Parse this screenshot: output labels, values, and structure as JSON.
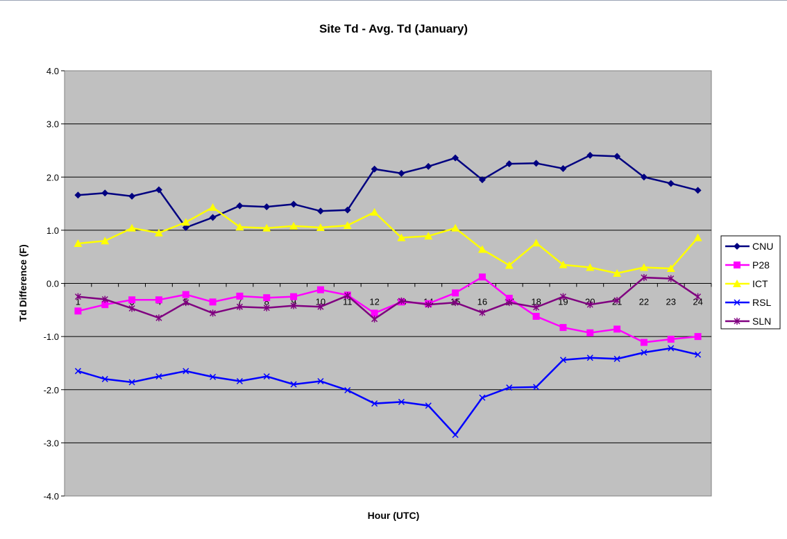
{
  "chart_data": {
    "type": "line",
    "title": "Site Td - Avg. Td (January)",
    "xlabel": "Hour (UTC)",
    "ylabel": "Td Difference (F)",
    "ylim": [
      -4.0,
      4.0
    ],
    "yticks": [
      "4.0",
      "3.0",
      "2.0",
      "1.0",
      "0.0",
      "-1.0",
      "-2.0",
      "-3.0",
      "-4.0"
    ],
    "categories": [
      "1",
      "2",
      "3",
      "4",
      "5",
      "6",
      "7",
      "8",
      "9",
      "10",
      "11",
      "12",
      "13",
      "14",
      "15",
      "16",
      "17",
      "18",
      "19",
      "20",
      "21",
      "22",
      "23",
      "24"
    ],
    "grid": true,
    "legend_position": "right",
    "plot_background": "#c0c0c0",
    "series": [
      {
        "name": "CNU",
        "color": "#000080",
        "marker": "diamond",
        "values": [
          1.66,
          1.7,
          1.64,
          1.76,
          1.05,
          1.24,
          1.46,
          1.44,
          1.49,
          1.36,
          1.38,
          2.15,
          2.07,
          2.2,
          2.36,
          1.95,
          2.25,
          2.26,
          2.16,
          2.41,
          2.39,
          2.0,
          1.88,
          1.75
        ]
      },
      {
        "name": "P28",
        "color": "#ff00ff",
        "marker": "square",
        "values": [
          -0.52,
          -0.4,
          -0.31,
          -0.31,
          -0.21,
          -0.35,
          -0.24,
          -0.27,
          -0.25,
          -0.12,
          -0.22,
          -0.56,
          -0.35,
          -0.38,
          -0.18,
          0.12,
          -0.28,
          -0.62,
          -0.83,
          -0.93,
          -0.86,
          -1.11,
          -1.05,
          -1.0
        ]
      },
      {
        "name": "ICT",
        "color": "#ffff00",
        "marker": "triangle",
        "values": [
          0.75,
          0.8,
          1.04,
          0.95,
          1.15,
          1.43,
          1.06,
          1.04,
          1.08,
          1.05,
          1.09,
          1.34,
          0.86,
          0.89,
          1.04,
          0.64,
          0.34,
          0.76,
          0.35,
          0.3,
          0.19,
          0.3,
          0.28,
          0.86
        ]
      },
      {
        "name": "RSL",
        "color": "#0000ff",
        "marker": "x",
        "values": [
          -1.65,
          -1.8,
          -1.86,
          -1.75,
          -1.65,
          -1.76,
          -1.84,
          -1.75,
          -1.9,
          -1.84,
          -2.01,
          -2.26,
          -2.23,
          -2.3,
          -2.85,
          -2.15,
          -1.96,
          -1.95,
          -1.44,
          -1.4,
          -1.42,
          -1.3,
          -1.22,
          -1.34
        ]
      },
      {
        "name": "SLN",
        "color": "#800080",
        "marker": "star",
        "values": [
          -0.25,
          -0.3,
          -0.47,
          -0.65,
          -0.36,
          -0.56,
          -0.44,
          -0.46,
          -0.42,
          -0.44,
          -0.23,
          -0.67,
          -0.33,
          -0.4,
          -0.36,
          -0.55,
          -0.36,
          -0.45,
          -0.25,
          -0.4,
          -0.32,
          0.11,
          0.09,
          -0.25
        ]
      }
    ]
  }
}
